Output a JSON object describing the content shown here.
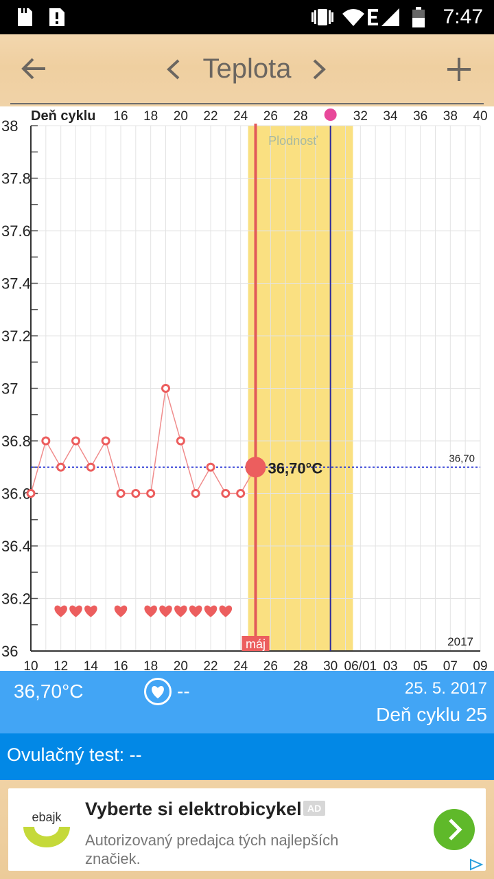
{
  "status_bar": {
    "time": "7:47",
    "icons": [
      "sd-card-icon",
      "sim-card-icon",
      "vibrate-icon",
      "wifi-icon",
      "network-e-icon",
      "signal-icon",
      "battery-icon"
    ]
  },
  "app_bar": {
    "title": "Teplota",
    "back_icon": "arrow-back-icon",
    "prev_icon": "chevron-left-icon",
    "next_icon": "chevron-right-icon",
    "add_icon": "plus-icon"
  },
  "colors": {
    "line": "#f08c8c",
    "marker": "#ec5e5e",
    "fertile": "#fae081",
    "today_line": "#e25a5a",
    "ovulation_line": "#2b2b9c",
    "cover_line": "#1c2ad1",
    "summary_bg": "#42a5f5",
    "ovul_bg": "#0288e6",
    "ad_button": "#5fb92a"
  },
  "chart_data": {
    "type": "line",
    "top_axis_label": "Deň cyklu",
    "top_ticks": [
      "16",
      "18",
      "20",
      "22",
      "24",
      "26",
      "28",
      "32",
      "34",
      "36",
      "38",
      "40"
    ],
    "bottom_ticks": [
      "10",
      "12",
      "14",
      "16",
      "18",
      "20",
      "22",
      "24",
      "26",
      "28",
      "30",
      "06/01",
      "03",
      "05",
      "07",
      "09"
    ],
    "y_ticks": [
      "38",
      "37.8",
      "37.6",
      "37.4",
      "37.2",
      "37",
      "36.8",
      "36.6",
      "36.4",
      "36.2",
      "36"
    ],
    "ylim": [
      36,
      38
    ],
    "xlim_cycle_day": [
      10,
      40
    ],
    "series": [
      {
        "x": [
          10,
          11,
          12,
          13,
          14,
          15,
          16,
          17,
          18,
          19,
          20,
          21,
          22,
          23,
          24,
          25
        ],
        "y": [
          36.6,
          36.8,
          36.7,
          36.8,
          36.7,
          36.8,
          36.6,
          36.6,
          36.6,
          37.0,
          36.8,
          36.6,
          36.7,
          36.6,
          36.6,
          36.7
        ]
      }
    ],
    "intercourse_days": [
      12,
      13,
      14,
      16,
      18,
      19,
      20,
      21,
      22,
      23
    ],
    "cover_line_value": 36.7,
    "cover_line_label": "36,70",
    "fertile_range": [
      24.5,
      31.5
    ],
    "fertile_label": "Plodnosť",
    "today_day": 25,
    "today_value": 36.7,
    "today_label": "36,70°C",
    "ovulation_day": 30,
    "month_tag": "máj",
    "year_label": "2017",
    "grid": true
  },
  "summary": {
    "temperature": "36,70°C",
    "heart_icon": "heart-circle-icon",
    "heart_value": "--",
    "date": "25. 5. 2017",
    "cycle_day": "Deň cyklu 25"
  },
  "ovulation_test": {
    "label": "Ovulačný test: --"
  },
  "ad": {
    "logo_text": "ebajk",
    "headline": "Vyberte si elektrobicykel",
    "badge": "AD",
    "description": "Autorizovaný predajca tých najlepších značiek.",
    "go_icon": "chevron-right-icon",
    "adchoices_icon": "adchoices-icon"
  }
}
